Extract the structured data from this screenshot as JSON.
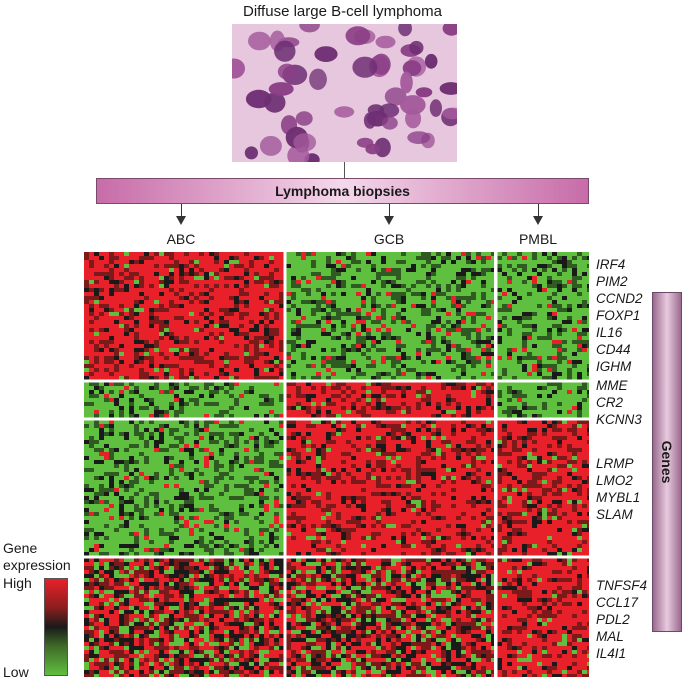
{
  "title": "Diffuse large B-cell lymphoma",
  "banner_label": "Lymphoma biopsies",
  "groups": [
    "ABC",
    "GCB",
    "PMBL"
  ],
  "gene_labels": [
    "IRF4",
    "PIM2",
    "CCND2",
    "FOXP1",
    "IL16",
    "CD44",
    "IGHM",
    "MME",
    "CR2",
    "KCNN3",
    "LRMP",
    "LMO2",
    "MYBL1",
    "SLAM",
    "TNFSF4",
    "CCL17",
    "PDL2",
    "MAL",
    "IL4I1"
  ],
  "genes_axis_label": "Genes",
  "legend": {
    "title_line1": "Gene",
    "title_line2": "expression",
    "high": "High",
    "low": "Low"
  },
  "colors": {
    "high": "#e8202a",
    "mid": "#1a1a1a",
    "low": "#5fbf3f",
    "banner": "#c76ca8",
    "genes_bar": "#9a6a8e"
  },
  "heatmap_pattern": [
    [
      "high",
      "low",
      "low"
    ],
    [
      "low",
      "high",
      "low"
    ],
    [
      "low",
      "high",
      "high"
    ],
    [
      "mixed",
      "mixed",
      "high"
    ]
  ]
}
